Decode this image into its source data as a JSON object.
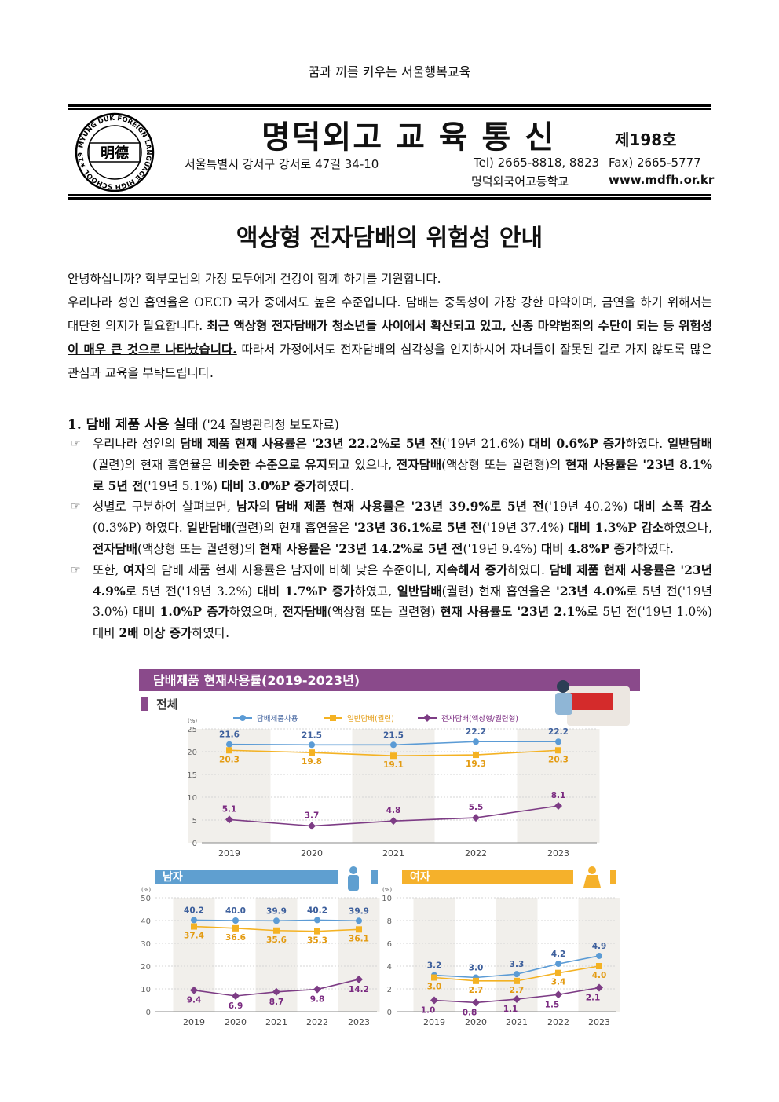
{
  "motto": "꿈과 끼를 키우는 서울행복교육",
  "header": {
    "logo_text": "明德",
    "logo_ring_text": "MYUNG DUK FOREIGN LANGUAGE HIGH SCHOOL ★1992★",
    "masthead": "명덕외고 교 육 통 신",
    "issue": "제198호",
    "address": "서울특별시 강서구 강서로 47길 34-10",
    "tel": "Tel) 2665-8818, 8823",
    "fax": "Fax) 2665-5777",
    "school_name": "명덕외국어고등학교",
    "website": "www.mdfh.or.kr"
  },
  "title": "액상형 전자담배의 위험성 안내",
  "intro": [
    [
      {
        "t": "안녕하십니까? 학부모님의 가정 모두에게 건강이 함께 하기를 기원합니다."
      }
    ],
    [
      {
        "t": "우리나라 성인 흡연율은 OECD 국가 중에서도 높은 수준입니다. 담배는 중독성이 가장 강한 마약이며, 금연을 하기 위해서는 대단한 의지가 필요합니다. "
      },
      {
        "t": "최근 액상형 전자담배가 청소년들 사이에서 확산되고 있고, 신종 마약범죄의 수단이 되는 등 위험성이 매우 큰 것으로 나타났습니다.",
        "u": true
      },
      {
        "t": " 따라서 가정에서도 전자담배의 심각성을 인지하시어 자녀들이 잘못된 길로 가지 않도록 많은 관심과 교육을 부탁드립니다."
      }
    ]
  ],
  "section": {
    "heading": "1. 담배 제품 사용 실태",
    "source": " ('24 질병관리청 보도자료)",
    "bullet_icon": "pointing-hand-icon ☞",
    "bullets": [
      [
        {
          "t": "우리나라 성인의 "
        },
        {
          "t": "담배 제품 현재 사용률은 '23년 22.2%로 5년 전",
          "b": true
        },
        {
          "t": "('19년 21.6%) "
        },
        {
          "t": "대비 0.6%P 증가",
          "b": true
        },
        {
          "t": "하였다. "
        },
        {
          "t": "일반담배",
          "b": true
        },
        {
          "t": "(궐련)의 현재 흡연율은 "
        },
        {
          "t": "비슷한 수준으로 유지",
          "b": true
        },
        {
          "t": "되고 있으나, "
        },
        {
          "t": "전자담배",
          "b": true
        },
        {
          "t": "(액상형 또는 궐련형)의 "
        },
        {
          "t": "현재 사용률은 '23년 8.1%로 5년 전",
          "b": true
        },
        {
          "t": "('19년 5.1%) "
        },
        {
          "t": "대비 3.0%P 증가",
          "b": true
        },
        {
          "t": "하였다."
        }
      ],
      [
        {
          "t": "성별로 구분하여 살펴보면, "
        },
        {
          "t": "남자",
          "b": true
        },
        {
          "t": "의 "
        },
        {
          "t": "담배 제품 현재 사용률은 '23년 39.9%로 5년 전",
          "b": true
        },
        {
          "t": "('19년 40.2%) "
        },
        {
          "t": "대비 소폭 감소",
          "b": true
        },
        {
          "t": "(0.3%P) 하였다. "
        },
        {
          "t": "일반담배",
          "b": true
        },
        {
          "t": "(궐련)의 현재 흡연율은 "
        },
        {
          "t": "'23년 36.1%로 5년 전",
          "b": true
        },
        {
          "t": "('19년 37.4%) "
        },
        {
          "t": "대비 1.3%P 감소",
          "b": true
        },
        {
          "t": "하였으나, "
        },
        {
          "t": "전자담배",
          "b": true
        },
        {
          "t": "(액상형 또는 궐련형)의 "
        },
        {
          "t": "현재 사용률은 '23년 14.2%로 5년 전",
          "b": true
        },
        {
          "t": "('19년 9.4%) "
        },
        {
          "t": "대비 4.8%P 증가",
          "b": true
        },
        {
          "t": "하였다."
        }
      ],
      [
        {
          "t": "또한, "
        },
        {
          "t": "여자",
          "b": true
        },
        {
          "t": "의 담배 제품 현재 사용률은 남자에 비해 낮은 수준이나, "
        },
        {
          "t": "지속해서 증가",
          "b": true
        },
        {
          "t": "하였다. "
        },
        {
          "t": "담배 제품 현재 사용률은 '23년 4.9%",
          "b": true
        },
        {
          "t": "로 5년 전('19년 3.2%) 대비 "
        },
        {
          "t": "1.7%P 증가",
          "b": true
        },
        {
          "t": "하였고, "
        },
        {
          "t": "일반담배",
          "b": true
        },
        {
          "t": "(궐련) 현재 흡연율은 "
        },
        {
          "t": "'23년 4.0%",
          "b": true
        },
        {
          "t": "로 5년 전('19년 3.0%) 대비 "
        },
        {
          "t": "1.0%P 증가",
          "b": true
        },
        {
          "t": "하였으며, "
        },
        {
          "t": "전자담배",
          "b": true
        },
        {
          "t": "(액상형 또는 궐련형) "
        },
        {
          "t": "현재 사용률도 '23년 2.1%",
          "b": true
        },
        {
          "t": "로 5년 전('19년 1.0%) 대비 "
        },
        {
          "t": "2배 이상 증가",
          "b": true
        },
        {
          "t": "하였다."
        }
      ]
    ]
  },
  "figure": {
    "title": "담배제품 현재사용률(2019-2023년)",
    "colors": {
      "header": "#8a4a8b",
      "tobacco": "#5b9bd5",
      "cigarette": "#f4b223",
      "ecig": "#7d3c85",
      "male": "#5f9fd0",
      "female": "#f5b12b",
      "band": "#f1efeb"
    }
  },
  "chart_data": [
    {
      "type": "line",
      "title": "전체",
      "ylabel": "(%)",
      "ylim": [
        0,
        25
      ],
      "yticks": [
        0,
        5,
        10,
        15,
        20,
        25
      ],
      "categories": [
        "2019",
        "2020",
        "2021",
        "2022",
        "2023"
      ],
      "legend": "top",
      "series": [
        {
          "name": "담배제품사용",
          "values": [
            21.6,
            21.5,
            21.5,
            22.2,
            22.2
          ],
          "marker": "circle"
        },
        {
          "name": "일반담배(궐련)",
          "values": [
            20.3,
            19.8,
            19.1,
            19.3,
            20.3
          ],
          "marker": "square"
        },
        {
          "name": "전자담배(액상형/궐련형)",
          "values": [
            5.1,
            3.7,
            4.8,
            5.5,
            8.1
          ],
          "marker": "diamond"
        }
      ]
    },
    {
      "type": "line",
      "title": "남자",
      "ylabel": "(%)",
      "ylim": [
        0,
        50
      ],
      "yticks": [
        0,
        10,
        20,
        30,
        40,
        50
      ],
      "categories": [
        "2019",
        "2020",
        "2021",
        "2022",
        "2023"
      ],
      "series": [
        {
          "values": [
            40.2,
            40.0,
            39.9,
            40.2,
            39.9
          ],
          "marker": "circle"
        },
        {
          "values": [
            37.4,
            36.6,
            35.6,
            35.3,
            36.1
          ],
          "marker": "square"
        },
        {
          "values": [
            9.4,
            6.9,
            8.7,
            9.8,
            14.2
          ],
          "marker": "diamond"
        }
      ]
    },
    {
      "type": "line",
      "title": "여자",
      "ylabel": "(%)",
      "ylim": [
        0,
        10
      ],
      "yticks": [
        0,
        2,
        4,
        6,
        8,
        10
      ],
      "categories": [
        "2019",
        "2020",
        "2021",
        "2022",
        "2023"
      ],
      "series": [
        {
          "values": [
            3.2,
            3.0,
            3.3,
            4.2,
            4.9
          ],
          "marker": "circle"
        },
        {
          "values": [
            3.0,
            2.7,
            2.7,
            3.4,
            4.0
          ],
          "marker": "square"
        },
        {
          "values": [
            1.0,
            0.8,
            1.1,
            1.5,
            2.1
          ],
          "marker": "diamond"
        }
      ]
    }
  ]
}
